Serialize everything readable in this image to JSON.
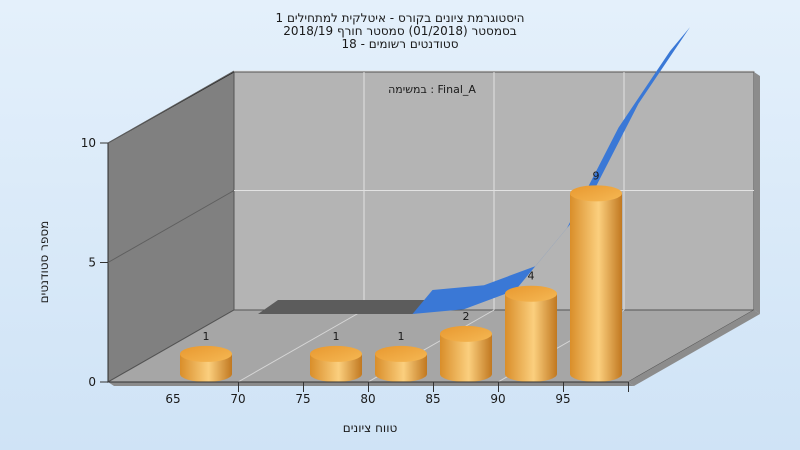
{
  "chart_data": {
    "type": "bar",
    "title_lines": [
      "היסטוגרמת ציונים בקורס - איטלקית למתחילים 1",
      "בסמסטר  (01/2018)  סמסטר חורף 2018/19",
      "סטודנטים רשומים - 18"
    ],
    "subtitle": "במשימה : Final_A",
    "xlabel": "טווח ציונים",
    "ylabel": "מספר סטודנטים",
    "ylim": [
      0,
      10
    ],
    "y_ticks": [
      "0",
      "5",
      "10"
    ],
    "x_ticks": [
      "65",
      "70",
      "75",
      "80",
      "85",
      "90",
      "95"
    ],
    "series": [
      {
        "type": "bar",
        "bins": [
          {
            "range": "60-65",
            "value": 1
          },
          {
            "range": "65-70",
            "value": 0
          },
          {
            "range": "70-75",
            "value": 1
          },
          {
            "range": "75-80",
            "value": 1
          },
          {
            "range": "80-85",
            "value": 2
          },
          {
            "range": "85-90",
            "value": 4
          },
          {
            "range": "90-95",
            "value": 9
          }
        ]
      },
      {
        "type": "area",
        "values": [
          0,
          0,
          0,
          0,
          0.2,
          1,
          3.6,
          7.8,
          11
        ]
      }
    ],
    "colors": {
      "bar": "#f0a83e",
      "curve": "#3a78d6",
      "back_wall": "#b4b4b4",
      "side_wall": "#808080",
      "floor": "#a6a6a6"
    }
  }
}
